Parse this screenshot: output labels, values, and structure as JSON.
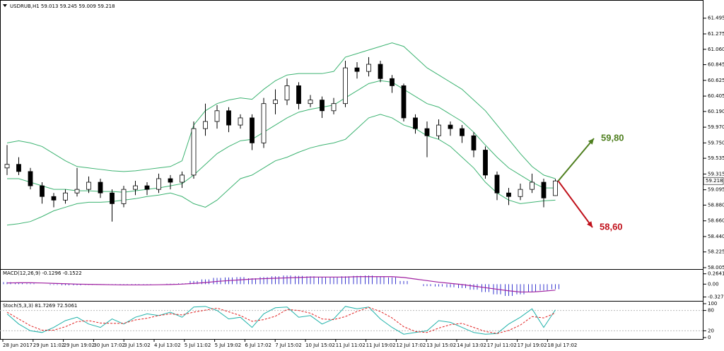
{
  "chart_data": [
    {
      "type": "candlestick",
      "title": "USDRUB,H1  59.013 59.245 59.009 59.218",
      "open": [
        59.4,
        59.45,
        59.35,
        59.15,
        59.0,
        58.95,
        59.05,
        59.1,
        59.2,
        59.05,
        58.9,
        59.1,
        59.15,
        59.1,
        59.25,
        59.2,
        59.3,
        59.95,
        60.05,
        60.2,
        60.0,
        60.1,
        59.75,
        60.3,
        60.35,
        60.55,
        60.3,
        60.35,
        60.2,
        60.3,
        60.8,
        60.75,
        60.85,
        60.65,
        60.55,
        60.1,
        59.95,
        59.85,
        60.0,
        59.95,
        59.85,
        59.65,
        59.3,
        59.05,
        59.0,
        59.1,
        59.2,
        59.013
      ],
      "high": [
        59.72,
        59.55,
        59.4,
        59.2,
        59.05,
        59.1,
        59.4,
        59.28,
        59.25,
        59.1,
        59.15,
        59.22,
        59.2,
        59.32,
        59.3,
        59.35,
        60.05,
        60.3,
        60.28,
        60.25,
        60.15,
        60.15,
        60.38,
        60.5,
        60.65,
        60.6,
        60.42,
        60.4,
        60.38,
        60.9,
        60.88,
        60.95,
        60.9,
        60.7,
        60.58,
        60.15,
        60.05,
        60.08,
        60.05,
        60.0,
        59.9,
        59.7,
        59.35,
        59.12,
        59.18,
        59.32,
        59.25,
        59.245
      ],
      "low": [
        59.3,
        59.3,
        59.1,
        58.9,
        58.85,
        58.9,
        59.0,
        59.05,
        58.98,
        58.65,
        58.85,
        59.02,
        59.02,
        59.05,
        59.1,
        59.12,
        59.25,
        59.85,
        59.95,
        59.9,
        59.95,
        59.65,
        59.68,
        60.15,
        60.28,
        60.22,
        60.25,
        60.1,
        60.15,
        60.25,
        60.65,
        60.68,
        60.6,
        60.45,
        60.05,
        59.88,
        59.55,
        59.8,
        59.85,
        59.75,
        59.55,
        59.25,
        58.95,
        58.88,
        58.95,
        59.05,
        58.85,
        59.009
      ],
      "close": [
        59.45,
        59.35,
        59.15,
        59.0,
        58.95,
        59.05,
        59.1,
        59.2,
        59.05,
        58.9,
        59.1,
        59.15,
        59.1,
        59.25,
        59.2,
        59.3,
        59.95,
        60.05,
        60.2,
        60.0,
        60.1,
        59.75,
        60.3,
        60.35,
        60.55,
        60.3,
        60.35,
        60.2,
        60.3,
        60.8,
        60.75,
        60.85,
        60.65,
        60.55,
        60.1,
        59.95,
        59.85,
        60.0,
        59.95,
        59.85,
        59.65,
        59.3,
        59.05,
        59.0,
        59.1,
        59.2,
        58.98,
        59.218
      ],
      "up_color": "#ffffff",
      "down_color": "#000000",
      "bands": {
        "color": "#3cb371",
        "upper": [
          59.75,
          59.78,
          59.75,
          59.7,
          59.6,
          59.5,
          59.42,
          59.4,
          59.38,
          59.36,
          59.35,
          59.36,
          59.38,
          59.4,
          59.42,
          59.5,
          60.0,
          60.2,
          60.3,
          60.35,
          60.38,
          60.36,
          60.5,
          60.62,
          60.7,
          60.72,
          60.72,
          60.72,
          60.75,
          60.95,
          61.0,
          61.05,
          61.1,
          61.15,
          61.1,
          60.95,
          60.8,
          60.7,
          60.6,
          60.5,
          60.35,
          60.2,
          60.0,
          59.8,
          59.6,
          59.42,
          59.3,
          59.25
        ],
        "middle": [
          59.25,
          59.25,
          59.2,
          59.15,
          59.1,
          59.1,
          59.08,
          59.08,
          59.07,
          59.07,
          59.06,
          59.08,
          59.1,
          59.12,
          59.15,
          59.18,
          59.3,
          59.45,
          59.6,
          59.7,
          59.78,
          59.8,
          59.9,
          60.0,
          60.1,
          60.18,
          60.22,
          60.25,
          60.28,
          60.38,
          60.48,
          60.58,
          60.62,
          60.6,
          60.5,
          60.4,
          60.3,
          60.25,
          60.15,
          60.05,
          59.9,
          59.72,
          59.55,
          59.4,
          59.3,
          59.2,
          59.12,
          59.12
        ],
        "lower": [
          58.6,
          58.62,
          58.65,
          58.72,
          58.8,
          58.85,
          58.9,
          58.92,
          58.92,
          58.93,
          58.95,
          58.97,
          59.0,
          59.02,
          59.05,
          59.0,
          58.9,
          58.85,
          58.95,
          59.1,
          59.25,
          59.3,
          59.4,
          59.5,
          59.55,
          59.62,
          59.68,
          59.72,
          59.75,
          59.8,
          59.95,
          60.1,
          60.15,
          60.1,
          60.0,
          59.95,
          59.85,
          59.8,
          59.7,
          59.55,
          59.4,
          59.2,
          59.05,
          58.95,
          58.9,
          58.92,
          58.94,
          58.95
        ]
      },
      "ylim": [
        57.985,
        61.7
      ],
      "yticks": [
        61.495,
        61.275,
        {
          "value": 61.06,
          "label": "61.060"
        },
        60.845,
        60.625,
        60.405,
        {
          "value": 60.19,
          "label": "60.190"
        },
        {
          "value": 59.97,
          "label": "59.970"
        },
        {
          "value": 59.75,
          "label": "59.750"
        },
        59.535,
        59.315,
        59.095,
        {
          "value": 58.88,
          "label": "58.880"
        },
        {
          "value": 58.66,
          "label": "58.660"
        },
        {
          "value": 58.44,
          "label": "58.440"
        },
        58.225,
        58.005
      ],
      "x_labels": [
        "28 Jun 2017",
        "29 Jun 11:02",
        "29 Jun 19:02",
        "30 Jun 17:02",
        "3 Jul 15:02",
        "4 Jul 13:02",
        "5 Jul 11:02",
        "5 Jul 19:02",
        "6 Jul 17:02",
        "7 Jul 15:02",
        "10 Jul 15:02",
        "11 Jul 11:02",
        "11 Jul 19:02",
        "12 Jul 17:02",
        "13 Jul 15:02",
        "14 Jul 13:02",
        "17 Jul 11:02",
        "17 Jul 19:02",
        "18 Jul 17:02"
      ],
      "annotations": [
        {
          "text": "59,80",
          "color": "#4f7f1f"
        },
        {
          "text": "58,60",
          "color": "#c0101a"
        }
      ]
    },
    {
      "type": "macd",
      "title": "MACD(12,26,9) -0.1296 -0.1522",
      "values": [
        0.05,
        0.04,
        0.02,
        0.0,
        -0.02,
        -0.03,
        -0.03,
        -0.02,
        -0.02,
        -0.02,
        -0.03,
        -0.02,
        -0.01,
        0.0,
        0.01,
        0.02,
        0.08,
        0.12,
        0.16,
        0.17,
        0.18,
        0.15,
        0.18,
        0.2,
        0.22,
        0.21,
        0.2,
        0.18,
        0.17,
        0.2,
        0.21,
        0.22,
        0.2,
        0.17,
        0.08,
        0.0,
        -0.05,
        -0.06,
        -0.08,
        -0.1,
        -0.14,
        -0.2,
        -0.26,
        -0.3,
        -0.26,
        -0.2,
        -0.16,
        -0.1296
      ],
      "signal": [
        0.03,
        0.035,
        0.035,
        0.03,
        0.02,
        0.01,
        0.0,
        -0.005,
        -0.01,
        -0.015,
        -0.02,
        -0.02,
        -0.02,
        -0.015,
        -0.01,
        0.0,
        0.02,
        0.04,
        0.07,
        0.09,
        0.11,
        0.13,
        0.14,
        0.15,
        0.16,
        0.17,
        0.18,
        0.18,
        0.18,
        0.18,
        0.19,
        0.19,
        0.19,
        0.19,
        0.17,
        0.13,
        0.09,
        0.05,
        0.02,
        -0.01,
        -0.05,
        -0.09,
        -0.13,
        -0.17,
        -0.2,
        -0.2,
        -0.18,
        -0.1522
      ],
      "color": "#3a3ad0",
      "signal_color": "#a020a0",
      "ylim": [
        -0.39,
        0.33
      ],
      "yticks": [
        0.2641,
        {
          "value": 0,
          "label": "0.00"
        },
        -0.3273
      ]
    },
    {
      "type": "line",
      "title": "Stoch(5,3,3) 81.7269 72.5061",
      "series": [
        {
          "color": "#20b2aa",
          "dashed": false,
          "values": [
            70,
            40,
            20,
            15,
            30,
            50,
            60,
            40,
            30,
            55,
            40,
            60,
            70,
            65,
            75,
            60,
            90,
            92,
            80,
            55,
            60,
            30,
            70,
            88,
            90,
            60,
            65,
            40,
            55,
            92,
            85,
            90,
            55,
            30,
            10,
            15,
            20,
            50,
            45,
            30,
            15,
            10,
            12,
            40,
            60,
            85,
            30,
            81.7269
          ]
        },
        {
          "color": "#e02020",
          "dashed": true,
          "values": [
            75,
            55,
            35,
            22,
            22,
            32,
            47,
            50,
            43,
            42,
            42,
            52,
            57,
            65,
            70,
            67,
            75,
            81,
            87,
            76,
            65,
            48,
            53,
            63,
            83,
            80,
            72,
            55,
            53,
            62,
            77,
            89,
            77,
            58,
            32,
            18,
            15,
            28,
            38,
            42,
            30,
            18,
            12,
            21,
            37,
            62,
            58,
            72.5061
          ]
        }
      ],
      "ylim": [
        0,
        100
      ],
      "yticks": [
        100,
        80,
        20,
        0
      ]
    }
  ]
}
